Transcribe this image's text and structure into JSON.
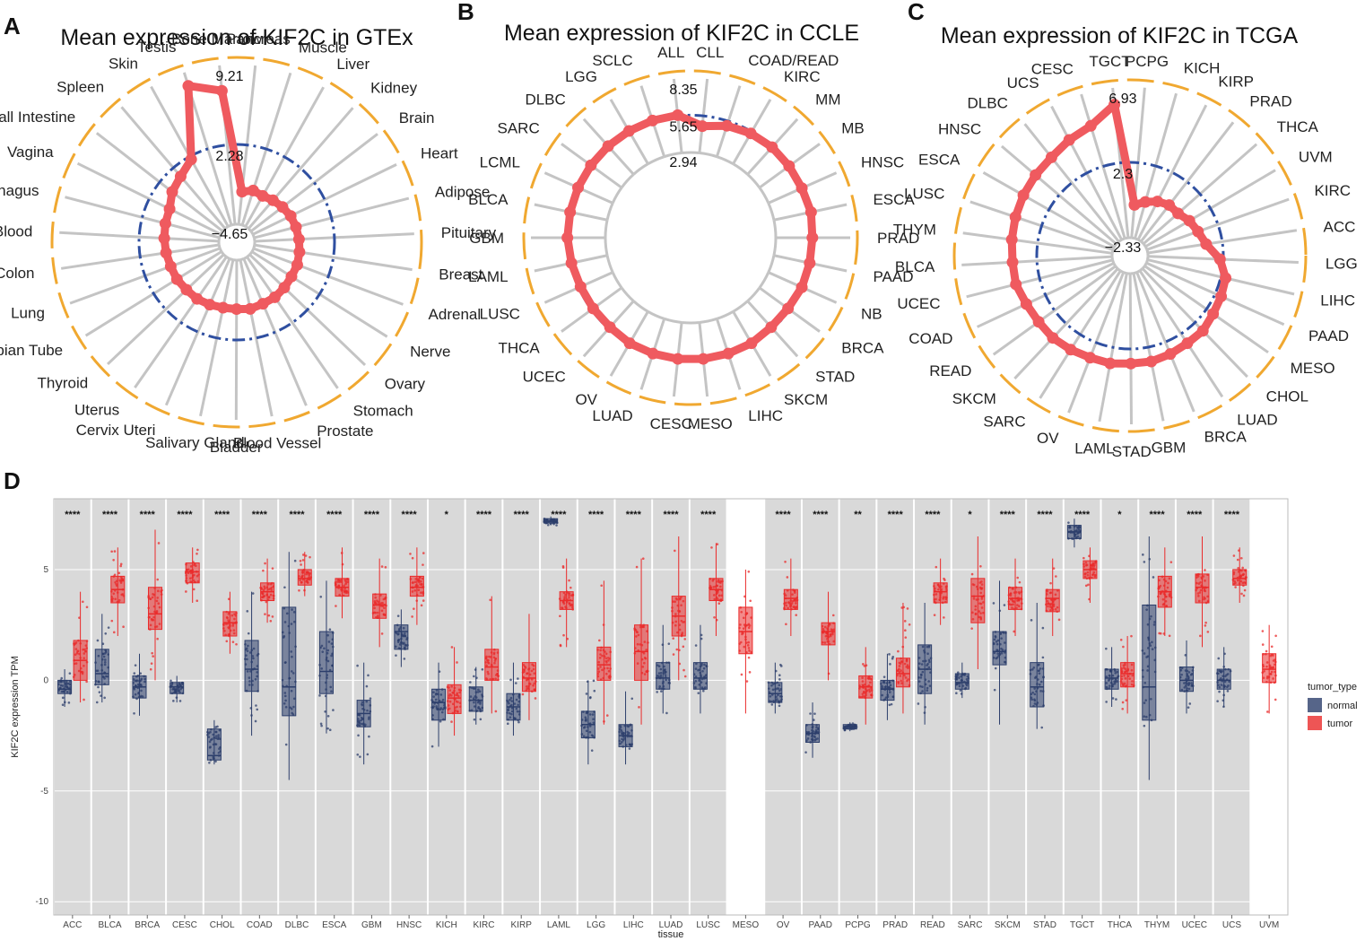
{
  "colors": {
    "highlight": "#e8262e",
    "series_line": "#ef5a5f",
    "spoke": "#c4c4c4",
    "outer_ring": "#f0a830",
    "mean_ring": "#2f4fa0",
    "normal": "#2c3e6b",
    "tumor": "#ea2a2a",
    "panel_bg": "#d9d9d9"
  },
  "chart_data": [
    {
      "type": "radar",
      "panel": "A",
      "title": "Mean expression of KIF2C in GTEx",
      "highlight": "Prostate",
      "scale_labels": [
        "9.21",
        "2.28",
        "−4.65"
      ],
      "rmin": -4.65,
      "rmax": 9.21,
      "mean_ring": 2.28,
      "categories": [
        "Pancreas",
        "Muscle",
        "Liver",
        "Kidney",
        "Brain",
        "Heart",
        "Adipose",
        "Pituitary",
        "Breast",
        "Adrenal",
        "Nerve",
        "Ovary",
        "Stomach",
        "Prostate",
        "Blood Vessel",
        "Bladder",
        "Salivary Gland",
        "Cervix Uteri",
        "Uterus",
        "Thyroid",
        "Fallopian Tube",
        "Lung",
        "Colon",
        "Blood",
        "Esophagus",
        "Vagina",
        "Small Intestine",
        "Spleen",
        "Skin",
        "Testis",
        "Bone Marrow"
      ],
      "values": [
        -1.8,
        -1.5,
        -1.6,
        -1.4,
        -1.2,
        -1.0,
        -0.9,
        -0.8,
        -0.7,
        -0.6,
        -0.6,
        -0.5,
        -0.4,
        -0.4,
        -0.3,
        -0.4,
        -0.4,
        -0.3,
        -0.2,
        -0.2,
        -0.1,
        -0.1,
        0.0,
        0.1,
        0.2,
        0.3,
        0.9,
        1.3,
        2.0,
        8.0,
        7.0
      ]
    },
    {
      "type": "radar",
      "panel": "B",
      "title": "Mean expression of KIF2C in CCLE",
      "highlight": "PRAD",
      "scale_labels": [
        "8.35",
        "5.65",
        "2.94"
      ],
      "rmin": 2.94,
      "rmax": 8.35,
      "mean_ring": 5.65,
      "categories": [
        "CLL",
        "COAD/READ",
        "KIRC",
        "MM",
        "MB",
        "HNSC",
        "ESCA",
        "PRAD",
        "PAAD",
        "NB",
        "BRCA",
        "STAD",
        "SKCM",
        "LIHC",
        "MESO",
        "CESC",
        "LUAD",
        "OV",
        "UCEC",
        "THCA",
        "LUSC",
        "LAML",
        "GBM",
        "BLCA",
        "LCML",
        "SARC",
        "DLBC",
        "LGG",
        "SCLC",
        "ALL"
      ],
      "values": [
        4.9,
        5.3,
        5.5,
        5.6,
        5.6,
        5.6,
        5.7,
        5.6,
        5.6,
        5.6,
        5.5,
        5.5,
        5.6,
        5.6,
        5.6,
        5.6,
        5.6,
        5.6,
        5.5,
        5.5,
        5.5,
        5.6,
        5.7,
        5.7,
        5.7,
        5.7,
        5.7,
        5.7,
        5.7,
        5.7
      ]
    },
    {
      "type": "radar",
      "panel": "C",
      "title": "Mean expression of KIF2C in TCGA",
      "highlight": "PRAD",
      "scale_labels": [
        "6.93",
        "2.3",
        "−2.33"
      ],
      "rmin": -2.33,
      "rmax": 6.93,
      "mean_ring": 2.3,
      "categories": [
        "PCPG",
        "KICH",
        "KIRP",
        "PRAD",
        "THCA",
        "UVM",
        "KIRC",
        "ACC",
        "LGG",
        "LIHC",
        "PAAD",
        "MESO",
        "CHOL",
        "LUAD",
        "BRCA",
        "GBM",
        "STAD",
        "LAML",
        "OV",
        "SARC",
        "SKCM",
        "READ",
        "COAD",
        "UCEC",
        "BLCA",
        "THYM",
        "LUSC",
        "ESCA",
        "HNSC",
        "DLBC",
        "UCS",
        "CESC",
        "TGCT"
      ],
      "values": [
        -0.3,
        0.0,
        0.3,
        0.5,
        0.5,
        0.8,
        1.0,
        1.3,
        2.1,
        2.6,
        2.7,
        2.8,
        3.0,
        3.0,
        3.1,
        3.2,
        3.2,
        3.3,
        3.3,
        3.4,
        3.5,
        3.5,
        3.6,
        3.8,
        3.8,
        3.9,
        4.0,
        4.1,
        4.2,
        4.3,
        4.6,
        4.9,
        5.9
      ]
    },
    {
      "type": "boxplot",
      "panel": "D",
      "xlabel": "tissue",
      "ylabel": "KIF2C expression TPM",
      "ylim": [
        -10.6,
        8.2
      ],
      "yticks": [
        -10,
        -5,
        0,
        5
      ],
      "legend_title": "tumor_type",
      "legend": [
        "normal",
        "tumor"
      ],
      "groups": [
        {
          "tissue": "ACC",
          "sig": "****",
          "normal": [
            -1.2,
            -0.6,
            -0.4,
            0.0,
            0.5
          ],
          "tumor": [
            -1.0,
            0.0,
            0.9,
            1.8,
            4.0
          ]
        },
        {
          "tissue": "BLCA",
          "sig": "****",
          "normal": [
            -1.0,
            -0.2,
            0.3,
            1.4,
            3.0
          ],
          "tumor": [
            2.0,
            3.5,
            4.1,
            4.7,
            6.0
          ]
        },
        {
          "tissue": "BRCA",
          "sig": "****",
          "normal": [
            -1.6,
            -0.8,
            -0.3,
            0.2,
            1.2
          ],
          "tumor": [
            0.0,
            2.3,
            3.0,
            4.2,
            6.8
          ]
        },
        {
          "tissue": "CESC",
          "sig": "****",
          "normal": [
            -1.0,
            -0.6,
            -0.3,
            -0.1,
            0.2
          ],
          "tumor": [
            3.5,
            4.4,
            4.9,
            5.3,
            6.0
          ]
        },
        {
          "tissue": "CHOL",
          "sig": "****",
          "normal": [
            -3.8,
            -3.6,
            -3.4,
            -2.2,
            -1.8
          ],
          "tumor": [
            1.2,
            2.0,
            2.6,
            3.1,
            4.0
          ]
        },
        {
          "tissue": "COAD",
          "sig": "****",
          "normal": [
            -2.5,
            -0.5,
            0.5,
            1.8,
            4.0
          ],
          "tumor": [
            2.6,
            3.6,
            4.0,
            4.4,
            5.5
          ]
        },
        {
          "tissue": "DLBC",
          "sig": "****",
          "normal": [
            -4.5,
            -1.6,
            -0.3,
            3.3,
            5.8
          ],
          "tumor": [
            3.8,
            4.3,
            4.6,
            5.0,
            5.8
          ]
        },
        {
          "tissue": "ESCA",
          "sig": "****",
          "normal": [
            -2.4,
            -0.6,
            0.4,
            2.2,
            4.5
          ],
          "tumor": [
            2.8,
            3.8,
            4.2,
            4.6,
            6.0
          ]
        },
        {
          "tissue": "GBM",
          "sig": "****",
          "normal": [
            -3.8,
            -2.1,
            -1.5,
            -0.9,
            0.8
          ],
          "tumor": [
            1.5,
            2.8,
            3.4,
            3.9,
            5.5
          ]
        },
        {
          "tissue": "HNSC",
          "sig": "****",
          "normal": [
            0.6,
            1.4,
            2.2,
            2.5,
            3.2
          ],
          "tumor": [
            2.5,
            3.8,
            4.2,
            4.7,
            6.0
          ]
        },
        {
          "tissue": "KICH",
          "sig": "*",
          "normal": [
            -3.0,
            -1.8,
            -1.0,
            -0.4,
            0.8
          ],
          "tumor": [
            -2.5,
            -1.5,
            -0.8,
            -0.2,
            1.5
          ]
        },
        {
          "tissue": "KIRC",
          "sig": "****",
          "normal": [
            -2.0,
            -1.4,
            -0.9,
            -0.3,
            0.6
          ],
          "tumor": [
            -1.5,
            0.0,
            0.6,
            1.4,
            3.8
          ]
        },
        {
          "tissue": "KIRP",
          "sig": "****",
          "normal": [
            -2.5,
            -1.8,
            -1.2,
            -0.6,
            0.8
          ],
          "tumor": [
            -1.8,
            -0.5,
            0.1,
            0.8,
            3.0
          ]
        },
        {
          "tissue": "LAML",
          "sig": "****",
          "normal": [
            7.0,
            7.1,
            7.2,
            7.3,
            7.4
          ],
          "tumor": [
            1.5,
            3.2,
            3.6,
            4.0,
            5.5
          ]
        },
        {
          "tissue": "LGG",
          "sig": "****",
          "normal": [
            -3.8,
            -2.6,
            -2.0,
            -1.4,
            0.0
          ],
          "tumor": [
            -2.0,
            0.0,
            0.7,
            1.5,
            4.5
          ]
        },
        {
          "tissue": "LIHC",
          "sig": "****",
          "normal": [
            -3.8,
            -3.0,
            -2.5,
            -2.0,
            -0.5
          ],
          "tumor": [
            -2.0,
            0.0,
            1.3,
            2.5,
            5.5
          ]
        },
        {
          "tissue": "LUAD",
          "sig": "****",
          "normal": [
            -1.5,
            -0.4,
            0.1,
            0.8,
            2.5
          ],
          "tumor": [
            0.0,
            2.0,
            2.9,
            3.8,
            6.5
          ]
        },
        {
          "tissue": "LUSC",
          "sig": "****",
          "normal": [
            -1.5,
            -0.4,
            0.1,
            0.8,
            2.5
          ],
          "tumor": [
            2.0,
            3.6,
            4.1,
            4.6,
            6.2
          ]
        },
        {
          "tissue": "MESO",
          "sig": "",
          "tumor": [
            -1.5,
            1.2,
            2.2,
            3.3,
            5.0
          ]
        },
        {
          "tissue": "OV",
          "sig": "****",
          "normal": [
            -1.5,
            -1.0,
            -0.6,
            -0.1,
            0.8
          ],
          "tumor": [
            2.0,
            3.2,
            3.7,
            4.1,
            5.5
          ]
        },
        {
          "tissue": "PAAD",
          "sig": "****",
          "normal": [
            -3.5,
            -2.8,
            -2.4,
            -2.0,
            -1.0
          ],
          "tumor": [
            0.0,
            1.6,
            2.2,
            2.6,
            4.0
          ]
        },
        {
          "tissue": "PCPG",
          "sig": "**",
          "normal": [
            -2.3,
            -2.2,
            -2.1,
            -2.0,
            -1.9
          ],
          "tumor": [
            -2.0,
            -0.8,
            -0.3,
            0.2,
            1.5
          ]
        },
        {
          "tissue": "PRAD",
          "sig": "****",
          "normal": [
            -1.8,
            -0.9,
            -0.4,
            0.0,
            1.2
          ],
          "tumor": [
            -1.5,
            -0.3,
            0.3,
            1.0,
            3.5
          ]
        },
        {
          "tissue": "READ",
          "sig": "****",
          "normal": [
            -2.0,
            -0.6,
            0.5,
            1.6,
            3.5
          ],
          "tumor": [
            2.5,
            3.5,
            4.0,
            4.4,
            5.5
          ]
        },
        {
          "tissue": "SARC",
          "sig": "*",
          "normal": [
            -0.8,
            -0.4,
            -0.1,
            0.3,
            0.8
          ],
          "tumor": [
            0.5,
            2.6,
            3.8,
            4.6,
            6.5
          ]
        },
        {
          "tissue": "SKCM",
          "sig": "****",
          "normal": [
            -2.0,
            0.7,
            1.3,
            2.2,
            4.5
          ],
          "tumor": [
            2.0,
            3.2,
            3.7,
            4.2,
            5.5
          ]
        },
        {
          "tissue": "STAD",
          "sig": "****",
          "normal": [
            -2.2,
            -1.2,
            -0.3,
            0.8,
            3.5
          ],
          "tumor": [
            2.0,
            3.1,
            3.7,
            4.1,
            5.5
          ]
        },
        {
          "tissue": "TGCT",
          "sig": "****",
          "normal": [
            6.0,
            6.4,
            6.7,
            7.0,
            7.3
          ],
          "tumor": [
            3.5,
            4.6,
            5.0,
            5.4,
            6.0
          ]
        },
        {
          "tissue": "THCA",
          "sig": "*",
          "normal": [
            -1.2,
            -0.4,
            0.1,
            0.5,
            1.5
          ],
          "tumor": [
            -1.5,
            -0.3,
            0.3,
            0.8,
            2.0
          ]
        },
        {
          "tissue": "THYM",
          "sig": "****",
          "normal": [
            -4.5,
            -1.8,
            -0.3,
            3.4,
            6.5
          ],
          "tumor": [
            2.0,
            3.3,
            4.0,
            4.7,
            6.0
          ]
        },
        {
          "tissue": "UCEC",
          "sig": "****",
          "normal": [
            -1.5,
            -0.5,
            0.0,
            0.6,
            1.8
          ],
          "tumor": [
            1.5,
            3.5,
            4.2,
            4.8,
            6.5
          ]
        },
        {
          "tissue": "UCS",
          "sig": "****",
          "normal": [
            -1.2,
            -0.4,
            0.0,
            0.5,
            1.5
          ],
          "tumor": [
            3.5,
            4.3,
            4.6,
            5.0,
            6.0
          ]
        },
        {
          "tissue": "UVM",
          "sig": "",
          "tumor": [
            -1.5,
            -0.1,
            0.5,
            1.2,
            2.5
          ]
        }
      ]
    }
  ]
}
